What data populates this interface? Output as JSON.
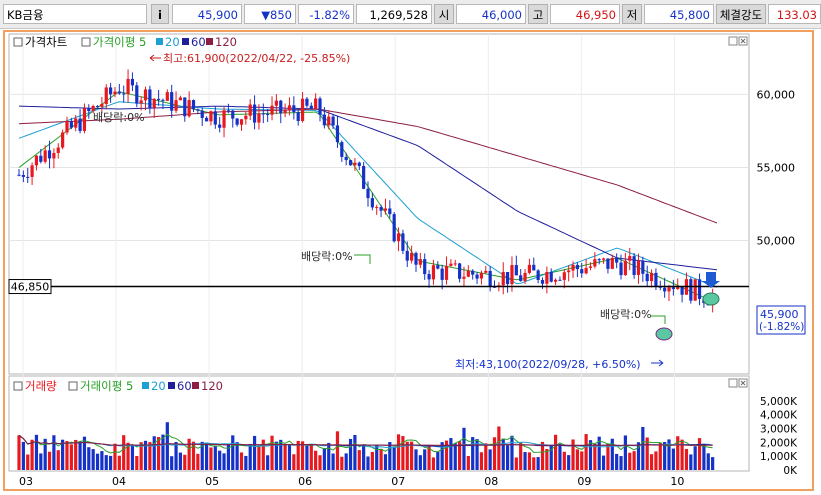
{
  "toolbar": {
    "stock_name": "KB금융",
    "info_label": "i",
    "price": "45,900",
    "change": "▼850",
    "change_pct": "-1.82%",
    "volume": "1,269,528",
    "open_label": "시",
    "open": "46,000",
    "high_label": "고",
    "high": "46,950",
    "low_label": "저",
    "low": "45,800",
    "strength_label": "체결강도",
    "strength": "133.03"
  },
  "colors": {
    "up": "#e8191e",
    "down": "#1432c8",
    "ma5": "#28a028",
    "ma20": "#1ea0d2",
    "ma60": "#1e1e9b",
    "ma120": "#8c1e41",
    "frame": "#f0a060"
  },
  "price_chart": {
    "legend": [
      {
        "label": "가격차트",
        "color": "#000000",
        "icon": "checkbox-icon"
      },
      {
        "label": "가격이평 5",
        "color": "#28a028",
        "icon": "checkbox-icon"
      },
      {
        "label": "20",
        "color": "#1ea0d2",
        "icon": "square-icon"
      },
      {
        "label": "60",
        "color": "#1e1e9b",
        "icon": "square-icon"
      },
      {
        "label": "120",
        "color": "#8c1e41",
        "icon": "square-icon"
      }
    ],
    "y_ticks": [
      "60,000",
      "55,000",
      "50,000"
    ],
    "annotations": {
      "high": "최고:61,900(2022/04/22, -25.85%)",
      "low": "최저:43,100(2022/09/28, +6.50%)",
      "dividend1": "배당락:0%",
      "dividend2": "배당락:0%",
      "dividend3": "배당락:0%"
    },
    "hline_value": "46,850",
    "current_price": "45,900",
    "current_pct": "(-1.82%)"
  },
  "volume_chart": {
    "legend": [
      {
        "label": "거래량",
        "color": "#e8191e",
        "icon": "checkbox-icon"
      },
      {
        "label": "거래이평 5",
        "color": "#28a028",
        "icon": "checkbox-icon"
      },
      {
        "label": "20",
        "color": "#1ea0d2",
        "icon": "square-icon"
      },
      {
        "label": "60",
        "color": "#1e1e9b",
        "icon": "square-icon"
      },
      {
        "label": "120",
        "color": "#8c1e41",
        "icon": "square-icon"
      }
    ],
    "y_ticks": [
      "5,000K",
      "4,000K",
      "3,000K",
      "2,000K",
      "1,000K",
      "0K"
    ]
  },
  "x_ticks": [
    "03",
    "04",
    "05",
    "06",
    "07",
    "08",
    "09",
    "10"
  ],
  "chart_data": {
    "type": "line",
    "title": "",
    "x": [
      "03",
      "04",
      "05",
      "06",
      "07",
      "08",
      "09",
      "10"
    ],
    "series": [
      {
        "name": "가격차트",
        "values": [
          54500,
          60500,
          58500,
          59000,
          48000,
          47500,
          48500,
          46000
        ]
      },
      {
        "name": "가격이평 5",
        "values": [
          55000,
          60200,
          58600,
          58800,
          48600,
          47300,
          48800,
          45700
        ]
      },
      {
        "name": "20",
        "values": [
          57000,
          59500,
          59000,
          58900,
          51500,
          47000,
          49500,
          46800
        ]
      },
      {
        "name": "60",
        "values": [
          59200,
          59000,
          59200,
          59000,
          56500,
          52000,
          48800,
          48000
        ]
      },
      {
        "name": "120",
        "values": [
          58000,
          58300,
          58800,
          59000,
          57800,
          55800,
          53800,
          51200
        ]
      }
    ],
    "ylim": [
      41000,
      64000
    ],
    "high_point": {
      "value": 61900,
      "date": "2022/04/22"
    },
    "low_point": {
      "value": 43100,
      "date": "2022/09/28"
    },
    "hline": 46850,
    "volume_ylim": [
      0,
      5500
    ]
  }
}
